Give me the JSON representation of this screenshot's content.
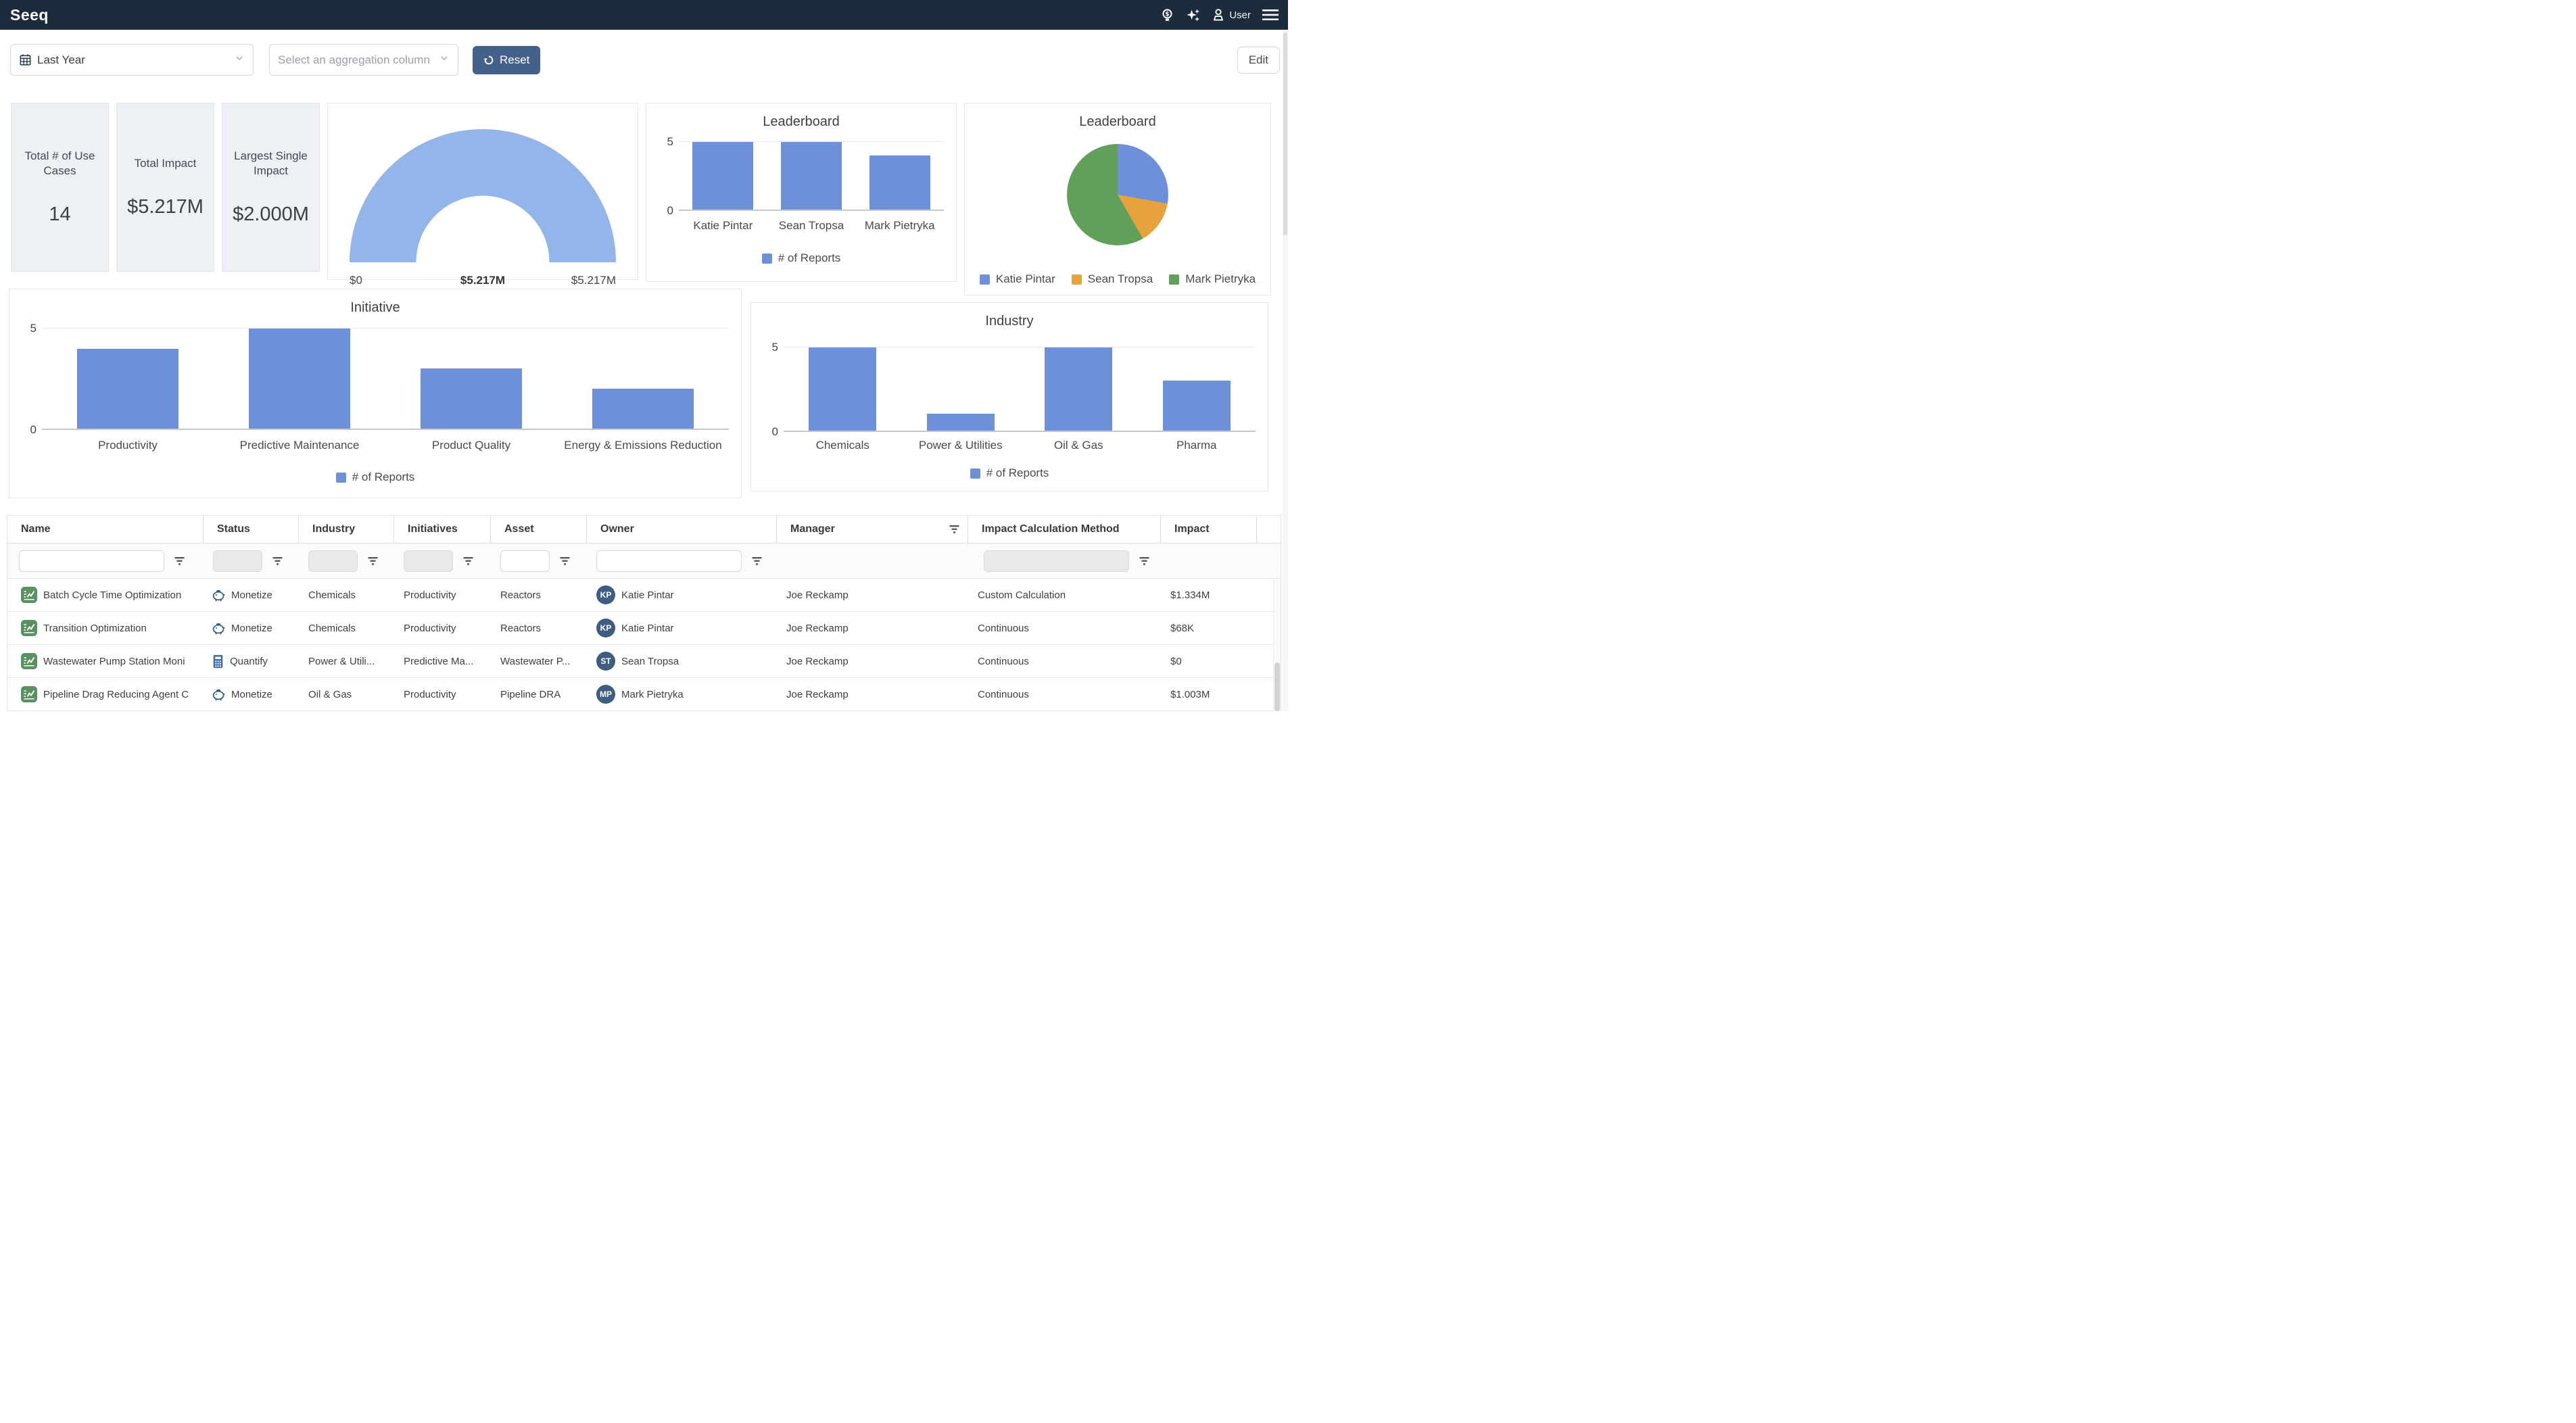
{
  "navbar": {
    "logo": "Seeq",
    "user_label": "User"
  },
  "toolbar": {
    "time_filter": "Last Year",
    "aggregation_placeholder": "Select an aggregation column",
    "reset_label": "Reset",
    "edit_label": "Edit"
  },
  "kpis": [
    {
      "title": "Total # of Use Cases",
      "value": "14"
    },
    {
      "title": "Total Impact",
      "value": "$5.217M"
    },
    {
      "title": "Largest Single Impact",
      "value": "$2.000M"
    }
  ],
  "chart_data": [
    {
      "type": "gauge",
      "min_label": "$0",
      "value_label": "$5.217M",
      "max_label": "$5.217M",
      "color": "#93b5ea"
    },
    {
      "type": "bar",
      "title": "Leaderboard",
      "categories": [
        "Katie Pintar",
        "Sean Tropsa",
        "Mark Pietryka"
      ],
      "values": [
        5,
        5,
        4
      ],
      "ylim": [
        0,
        5
      ],
      "yticks": [
        0,
        5
      ],
      "legend": "# of Reports",
      "color": "#6e90d8",
      "grid": "horizontal",
      "legend_position": "bottom"
    },
    {
      "type": "pie",
      "title": "Leaderboard",
      "slices": [
        {
          "label": "Katie Pintar",
          "percent": 27.8,
          "color": "#6e90d8"
        },
        {
          "label": "Sean Tropsa",
          "percent": 13.9,
          "color": "#e6a23c"
        },
        {
          "label": "Mark Pietryka",
          "percent": 58.3,
          "color": "#61a05a"
        }
      ],
      "legend_position": "bottom"
    },
    {
      "type": "bar",
      "title": "Initiative",
      "categories": [
        "Productivity",
        "Predictive Maintenance",
        "Product Quality",
        "Energy & Emissions Reduction"
      ],
      "values": [
        4,
        5,
        3,
        2
      ],
      "ylim": [
        0,
        5
      ],
      "yticks": [
        0,
        5
      ],
      "legend": "# of Reports",
      "color": "#6e90d8",
      "grid": "horizontal",
      "legend_position": "bottom"
    },
    {
      "type": "bar",
      "title": "Industry",
      "categories": [
        "Chemicals",
        "Power & Utilities",
        "Oil & Gas",
        "Pharma"
      ],
      "values": [
        5,
        1,
        5,
        3
      ],
      "ylim": [
        0,
        5
      ],
      "yticks": [
        0,
        5
      ],
      "legend": "# of Reports",
      "color": "#6e90d8",
      "grid": "horizontal",
      "legend_position": "bottom"
    }
  ],
  "table": {
    "columns": [
      "Name",
      "Status",
      "Industry",
      "Initiatives",
      "Asset",
      "Owner",
      "Manager",
      "Impact Calculation Method",
      "Impact"
    ],
    "rows": [
      {
        "name": "Batch Cycle Time Optimization",
        "status": "Monetize",
        "status_icon": "piggy-bank-icon",
        "industry": "Chemicals",
        "initiatives": "Productivity",
        "asset": "Reactors",
        "owner": "Katie Pintar",
        "owner_initials": "KP",
        "manager": "Joe Reckamp",
        "impact_method": "Custom Calculation",
        "impact": "$1.334M"
      },
      {
        "name": "Transition Optimization",
        "status": "Monetize",
        "status_icon": "piggy-bank-icon",
        "industry": "Chemicals",
        "initiatives": "Productivity",
        "asset": "Reactors",
        "owner": "Katie Pintar",
        "owner_initials": "KP",
        "manager": "Joe Reckamp",
        "impact_method": "Continuous",
        "impact": "$68K"
      },
      {
        "name": "Wastewater Pump Station Moni",
        "status": "Quantify",
        "status_icon": "calculator-icon",
        "industry": "Power & Utili...",
        "initiatives": "Predictive Ma...",
        "asset": "Wastewater P...",
        "owner": "Sean Tropsa",
        "owner_initials": "ST",
        "manager": "Joe Reckamp",
        "impact_method": "Continuous",
        "impact": "$0"
      },
      {
        "name": "Pipeline Drag Reducing Agent C",
        "status": "Monetize",
        "status_icon": "piggy-bank-icon",
        "industry": "Oil & Gas",
        "initiatives": "Productivity",
        "asset": "Pipeline DRA",
        "owner": "Mark Pietryka",
        "owner_initials": "MP",
        "manager": "Joe Reckamp",
        "impact_method": "Continuous",
        "impact": "$1.003M"
      }
    ]
  },
  "colors": {
    "navbar_bg": "#1d2c3c",
    "bar_blue": "#6e90d8",
    "gauge_blue": "#93b5ea",
    "pie_orange": "#e6a23c",
    "pie_green": "#61a05a",
    "reset_btn": "#44618c",
    "avatar_bg": "#3f5d80",
    "report_icon_green": "#5a9160",
    "status_icon_blue": "#2e5a7d",
    "calculator_icon_blue": "#3d6ca6",
    "kpi_card_bg": "#edf1f6"
  }
}
